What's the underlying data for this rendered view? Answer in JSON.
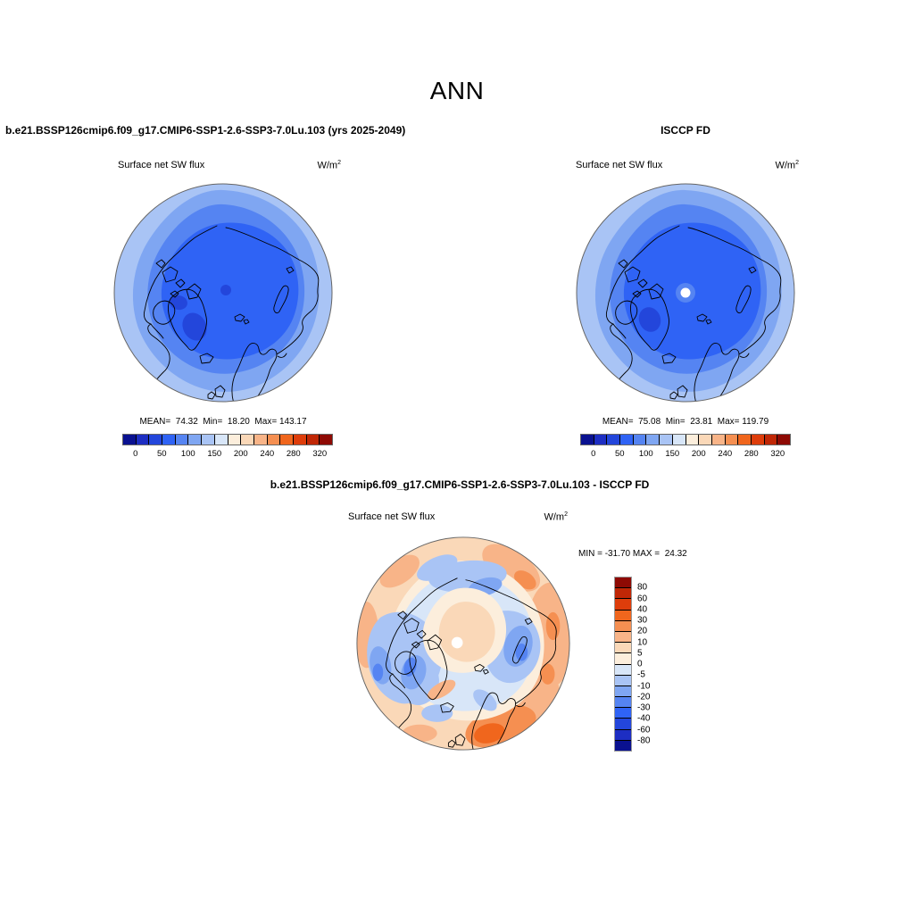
{
  "title": "ANN",
  "palette": [
    "#0A1190",
    "#1D2EC3",
    "#2346DB",
    "#2F63F5",
    "#5584F2",
    "#7FA6F2",
    "#A9C4F5",
    "#D8E6F8",
    "#FCEEDC",
    "#FAD8B8",
    "#F8B488",
    "#F58F51",
    "#F0661D",
    "#DE3D0B",
    "#C02706",
    "#8E0A04"
  ],
  "panels": {
    "model": {
      "title": "b.e21.BSSP126cmip6.f09_g17.CMIP6-SSP1-2.6-SSP3-7.0Lu.103 (yrs 2025-2049)",
      "field": "Surface net SW flux",
      "units_base": "W/m",
      "units_exp": "2",
      "stats": "MEAN=  74.32  Min=  18.20  Max= 143.17"
    },
    "obs": {
      "title": "ISCCP FD",
      "field": "Surface net SW flux",
      "units_base": "W/m",
      "units_exp": "2",
      "stats": "MEAN=  75.08  Min=  23.81  Max= 119.79"
    },
    "diff": {
      "title": "b.e21.BSSP126cmip6.f09_g17.CMIP6-SSP1-2.6-SSP3-7.0Lu.103 - ISCCP FD",
      "field": "Surface net SW flux",
      "units_base": "W/m",
      "units_exp": "2",
      "stats": "MIN = -31.70 MAX =  24.32"
    }
  },
  "colorbar_top": {
    "orientation": "horizontal",
    "labels": [
      "0",
      "50",
      "100",
      "150",
      "200",
      "240",
      "280",
      "320"
    ]
  },
  "colorbar_diff": {
    "orientation": "vertical",
    "labels": [
      "80",
      "60",
      "40",
      "30",
      "20",
      "10",
      "5",
      "0",
      "-5",
      "-10",
      "-20",
      "-30",
      "-40",
      "-60",
      "-80"
    ]
  },
  "chart_data": [
    {
      "type": "contour-map",
      "panel": "top-left",
      "projection": "north-polar-stereographic",
      "season": "ANN",
      "title": "b.e21.BSSP126cmip6.f09_g17.CMIP6-SSP1-2.6-SSP3-7.0Lu.103 (yrs 2025-2049)",
      "variable": "Surface net SW flux",
      "units": "W/m2",
      "mean": 74.32,
      "min": 18.2,
      "max": 143.17,
      "contour_levels": [
        0,
        25,
        50,
        75,
        100,
        125,
        150,
        175,
        200,
        220,
        240,
        260,
        280,
        300,
        320
      ],
      "labeled_levels": [
        0,
        50,
        100,
        150,
        200,
        240,
        280,
        320
      ],
      "palette_direction": "blue-to-red"
    },
    {
      "type": "contour-map",
      "panel": "top-right",
      "projection": "north-polar-stereographic",
      "season": "ANN",
      "title": "ISCCP FD",
      "variable": "Surface net SW flux",
      "units": "W/m2",
      "mean": 75.08,
      "min": 23.81,
      "max": 119.79,
      "contour_levels": [
        0,
        25,
        50,
        75,
        100,
        125,
        150,
        175,
        200,
        220,
        240,
        260,
        280,
        300,
        320
      ],
      "labeled_levels": [
        0,
        50,
        100,
        150,
        200,
        240,
        280,
        320
      ],
      "palette_direction": "blue-to-red"
    },
    {
      "type": "contour-map-difference",
      "panel": "bottom",
      "projection": "north-polar-stereographic",
      "season": "ANN",
      "title": "b.e21.BSSP126cmip6.f09_g17.CMIP6-SSP1-2.6-SSP3-7.0Lu.103 - ISCCP FD",
      "variable": "Surface net SW flux",
      "units": "W/m2",
      "min": -31.7,
      "max": 24.32,
      "contour_levels": [
        -80,
        -60,
        -40,
        -30,
        -20,
        -10,
        -5,
        0,
        5,
        10,
        20,
        30,
        40,
        60,
        80
      ],
      "palette_direction": "blue-to-red"
    }
  ]
}
